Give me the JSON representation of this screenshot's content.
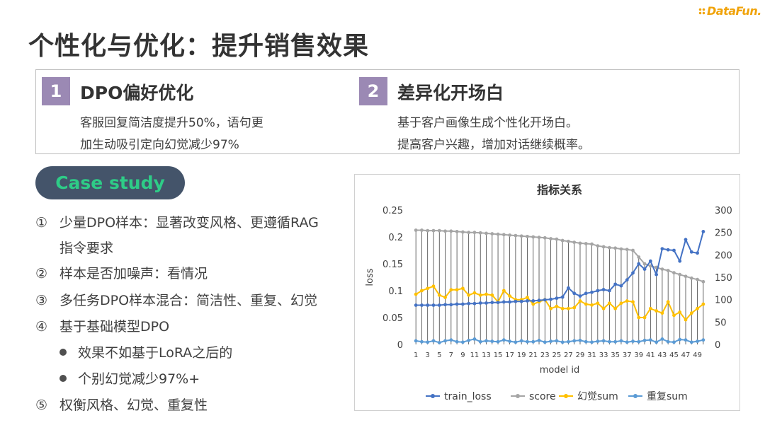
{
  "brand": {
    "logo_text": "DataFun."
  },
  "slide": {
    "title": "个性化与优化：提升销售效果"
  },
  "points": [
    {
      "number": "1",
      "title": "DPO偏好优化",
      "desc": [
        "客服回复简洁度提升50%，语句更",
        "加生动吸引定向幻觉减少97%"
      ]
    },
    {
      "number": "2",
      "title": "差异化开场白",
      "desc": [
        "基于客户画像生成个性化开场白。",
        "提高客户兴趣，增加对话继续概率。"
      ]
    }
  ],
  "case_study": {
    "label": "Case study",
    "items": [
      {
        "mark": "①",
        "text": "少量DPO样本：显著改变风格、更遵循RAG"
      },
      {
        "mark": "",
        "text": "指令要求"
      },
      {
        "mark": "②",
        "text": "样本是否加噪声：看情况"
      },
      {
        "mark": "③",
        "text": "多任务DPO样本混合：简洁性、重复、幻觉"
      },
      {
        "mark": "④",
        "text": "基于基础模型DPO"
      },
      {
        "mark": "•",
        "text": "效果不如基于LoRA之后的",
        "sub": true
      },
      {
        "mark": "•",
        "text": "个别幻觉减少97%+",
        "sub": true
      },
      {
        "mark": "⑤",
        "text": "权衡风格、幻觉、重复性"
      }
    ]
  },
  "chart_data": {
    "type": "line",
    "title": "指标关系",
    "xlabel": "model id",
    "ylabel": "loss",
    "y2label": "",
    "x": [
      1,
      2,
      3,
      4,
      5,
      6,
      7,
      8,
      9,
      10,
      11,
      12,
      13,
      14,
      15,
      16,
      17,
      18,
      19,
      20,
      21,
      22,
      23,
      24,
      25,
      26,
      27,
      28,
      29,
      30,
      31,
      32,
      33,
      34,
      35,
      36,
      37,
      38,
      39,
      40,
      41,
      42,
      43,
      44,
      45,
      46,
      47,
      48,
      49,
      50
    ],
    "x_tick_labels": [
      "1",
      "3",
      "5",
      "7",
      "9",
      "11",
      "13",
      "15",
      "17",
      "19",
      "21",
      "23",
      "25",
      "27",
      "29",
      "31",
      "33",
      "35",
      "37",
      "39",
      "41",
      "43",
      "45",
      "47",
      "49"
    ],
    "ylim": [
      0,
      0.25
    ],
    "y_ticks": [
      "0",
      "0.05",
      "0.1",
      "0.15",
      "0.2",
      "0.25"
    ],
    "y2lim": [
      0,
      300
    ],
    "y2_ticks": [
      "0",
      "50",
      "100",
      "150",
      "200",
      "250",
      "300"
    ],
    "grid": false,
    "legend_position": "bottom",
    "drop_lines": true,
    "series": [
      {
        "name": "train_loss",
        "axis": "left",
        "color": "#4472c4",
        "values": [
          0.073,
          0.073,
          0.073,
          0.073,
          0.073,
          0.074,
          0.074,
          0.075,
          0.075,
          0.076,
          0.076,
          0.077,
          0.077,
          0.078,
          0.078,
          0.079,
          0.079,
          0.08,
          0.08,
          0.081,
          0.081,
          0.082,
          0.083,
          0.084,
          0.086,
          0.088,
          0.105,
          0.095,
          0.09,
          0.095,
          0.097,
          0.1,
          0.102,
          0.1,
          0.112,
          0.109,
          0.12,
          0.133,
          0.15,
          0.14,
          0.155,
          0.13,
          0.178,
          0.176,
          0.175,
          0.155,
          0.195,
          0.172,
          0.17,
          0.21
        ]
      },
      {
        "name": "score",
        "axis": "right",
        "color": "#a5a5a5",
        "values": [
          255,
          255,
          254,
          254,
          254,
          253,
          253,
          252,
          251,
          250,
          250,
          249,
          248,
          247,
          246,
          245,
          244,
          243,
          242,
          241,
          240,
          239,
          238,
          236,
          235,
          232,
          230,
          228,
          226,
          225,
          224,
          220,
          218,
          216,
          215,
          213,
          212,
          210,
          195,
          180,
          175,
          172,
          168,
          165,
          160,
          156,
          152,
          148,
          145,
          140
        ]
      },
      {
        "name": "幻觉sum",
        "axis": "right",
        "color": "#ffc000",
        "values": [
          112,
          120,
          125,
          130,
          110,
          105,
          122,
          122,
          125,
          110,
          115,
          110,
          112,
          110,
          95,
          120,
          108,
          100,
          100,
          105,
          90,
          95,
          100,
          80,
          85,
          80,
          80,
          82,
          97,
          90,
          88,
          92,
          80,
          92,
          80,
          92,
          97,
          95,
          60,
          60,
          80,
          75,
          70,
          95,
          65,
          72,
          55,
          70,
          80,
          90
        ]
      },
      {
        "name": "重复sum",
        "axis": "right",
        "color": "#5b9bd5",
        "values": [
          8,
          6,
          5,
          8,
          4,
          8,
          10,
          6,
          5,
          9,
          12,
          6,
          8,
          7,
          6,
          10,
          7,
          5,
          8,
          6,
          6,
          9,
          5,
          7,
          8,
          5,
          6,
          8,
          9,
          6,
          5,
          7,
          8,
          6,
          6,
          8,
          5,
          7,
          6,
          9,
          10,
          5,
          12,
          6,
          5,
          11,
          10,
          5,
          7,
          10
        ]
      }
    ]
  }
}
